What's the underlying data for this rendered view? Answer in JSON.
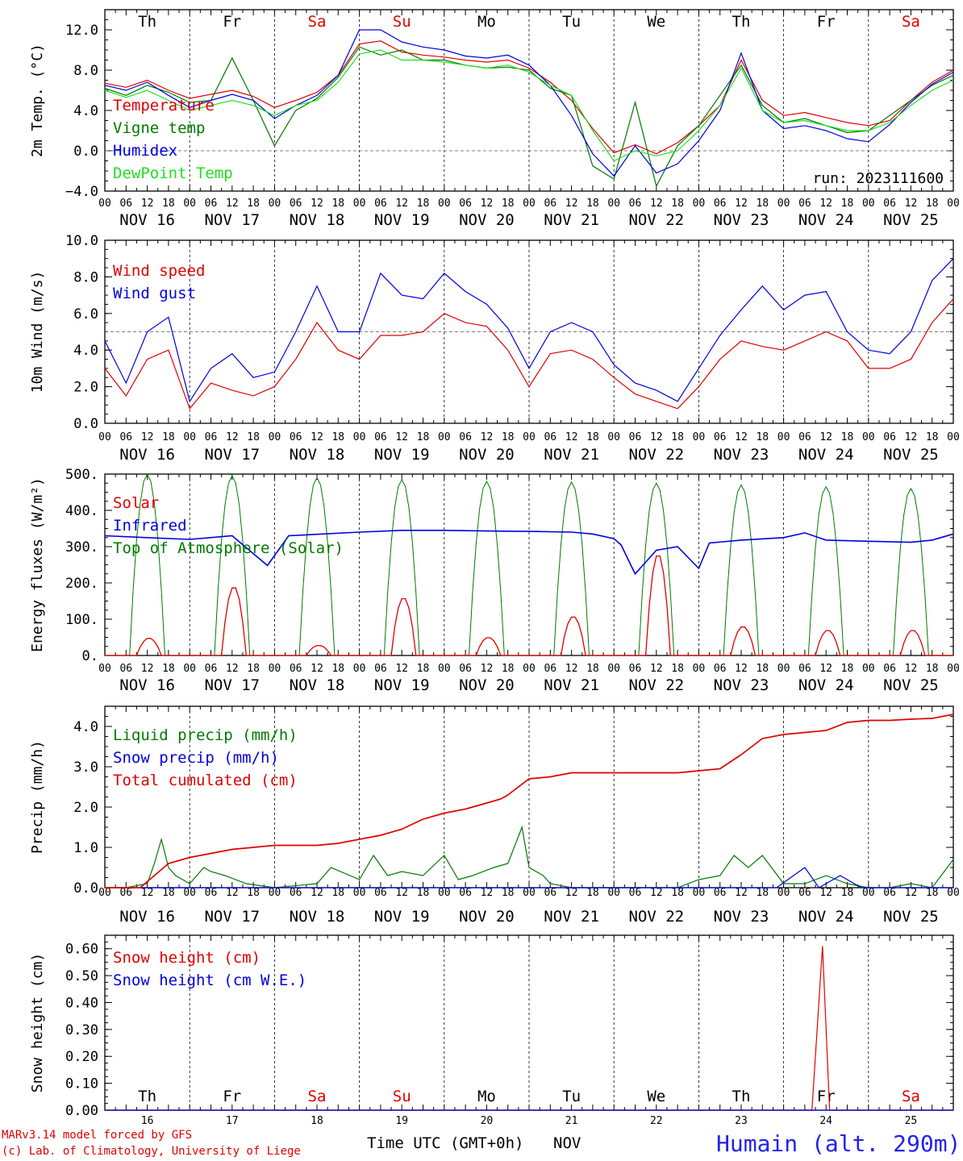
{
  "chart_data": [
    {
      "type": "line",
      "ylabel": "2m Temp. (°C)",
      "ylim": [
        -4,
        14
      ],
      "yticks": [
        "−4.0",
        "0.0",
        "4.0",
        "8.0",
        "12.0"
      ],
      "x_unit": "hours since NOV 16 00 UTC",
      "xlim": [
        0,
        240
      ],
      "reference_line": 0,
      "annotation": "run: 2023111600",
      "legend": [
        "Temperature",
        "Vigne temp",
        "Humidex",
        "DewPoint Temp"
      ],
      "series": [
        {
          "name": "Temperature",
          "color": "#e00000",
          "x": [
            0,
            6,
            12,
            18,
            24,
            30,
            36,
            42,
            48,
            54,
            60,
            66,
            72,
            78,
            84,
            90,
            96,
            102,
            108,
            114,
            120,
            126,
            132,
            138,
            144,
            150,
            156,
            162,
            168,
            174,
            180,
            186,
            192,
            198,
            204,
            210,
            216,
            222,
            228,
            234,
            240
          ],
          "values": [
            6.7,
            6.3,
            7.0,
            6.0,
            5.2,
            5.6,
            6.0,
            5.4,
            4.3,
            5.0,
            5.8,
            7.5,
            10.6,
            10.9,
            9.8,
            9.5,
            9.3,
            9.0,
            8.8,
            9.0,
            8.2,
            6.8,
            5.0,
            2.2,
            -0.2,
            0.6,
            -0.3,
            0.8,
            2.5,
            4.5,
            9.0,
            5.0,
            3.5,
            3.8,
            3.3,
            2.8,
            2.5,
            3.0,
            5.0,
            6.8,
            8.0
          ]
        },
        {
          "name": "Vigne temp",
          "color": "#007a00",
          "x": [
            0,
            6,
            12,
            18,
            24,
            30,
            36,
            42,
            48,
            54,
            60,
            66,
            72,
            78,
            84,
            90,
            96,
            102,
            108,
            114,
            120,
            126,
            132,
            138,
            144,
            150,
            156,
            162,
            168,
            174,
            180,
            186,
            192,
            198,
            204,
            210,
            216,
            222,
            228,
            234,
            240
          ],
          "values": [
            6.2,
            5.5,
            6.5,
            5.8,
            4.8,
            5.0,
            9.2,
            5.0,
            0.5,
            4.0,
            5.2,
            7.3,
            10.3,
            9.5,
            10.0,
            9.0,
            9.0,
            8.5,
            8.2,
            8.3,
            8.0,
            6.2,
            5.5,
            -1.5,
            -2.8,
            4.8,
            -3.5,
            0.5,
            2.5,
            5.5,
            8.5,
            4.5,
            2.8,
            3.2,
            2.5,
            1.8,
            2.0,
            3.5,
            5.0,
            6.5,
            7.5
          ]
        },
        {
          "name": "Humidex",
          "color": "#0000e0",
          "x": [
            0,
            6,
            12,
            18,
            24,
            30,
            36,
            42,
            48,
            54,
            60,
            66,
            72,
            78,
            84,
            90,
            96,
            102,
            108,
            114,
            120,
            126,
            132,
            138,
            144,
            150,
            156,
            162,
            168,
            174,
            180,
            186,
            192,
            198,
            204,
            210,
            216,
            222,
            228,
            234,
            240
          ],
          "values": [
            6.5,
            6.0,
            6.8,
            5.5,
            4.3,
            5.0,
            5.6,
            5.0,
            3.2,
            4.5,
            5.5,
            7.5,
            12.0,
            12.0,
            10.8,
            10.3,
            10.0,
            9.4,
            9.2,
            9.5,
            8.5,
            6.5,
            3.5,
            -0.3,
            -2.5,
            0.5,
            -2.2,
            -1.3,
            1.0,
            4.0,
            9.7,
            4.0,
            2.2,
            2.5,
            2.0,
            1.2,
            0.9,
            2.6,
            4.8,
            6.6,
            7.8
          ]
        },
        {
          "name": "DewPoint Temp",
          "color": "#22dd22",
          "x": [
            0,
            6,
            12,
            18,
            24,
            30,
            36,
            42,
            48,
            54,
            60,
            66,
            72,
            78,
            84,
            90,
            96,
            102,
            108,
            114,
            120,
            126,
            132,
            138,
            144,
            150,
            156,
            162,
            168,
            174,
            180,
            186,
            192,
            198,
            204,
            210,
            216,
            222,
            228,
            234,
            240
          ],
          "values": [
            6.0,
            5.3,
            6.0,
            5.0,
            4.0,
            4.5,
            5.0,
            4.5,
            3.5,
            4.5,
            5.0,
            6.8,
            9.6,
            10.0,
            9.0,
            9.0,
            8.8,
            8.5,
            8.2,
            8.5,
            7.8,
            6.5,
            5.5,
            2.0,
            -1.0,
            0.0,
            -0.5,
            0.0,
            2.0,
            4.5,
            8.2,
            4.0,
            2.8,
            3.0,
            2.5,
            2.0,
            2.0,
            2.8,
            4.5,
            6.0,
            7.0
          ]
        }
      ]
    },
    {
      "type": "line",
      "ylabel": "10m Wind (m/s)",
      "ylim": [
        0,
        10
      ],
      "yticks": [
        "0.0",
        "2.0",
        "4.0",
        "6.0",
        "8.0",
        "10.0"
      ],
      "x_unit": "hours since NOV 16 00 UTC",
      "xlim": [
        0,
        240
      ],
      "reference_line": 5,
      "legend": [
        "Wind speed",
        "Wind gust"
      ],
      "series": [
        {
          "name": "Wind speed",
          "color": "#e00000",
          "x": [
            0,
            6,
            12,
            18,
            24,
            30,
            36,
            42,
            48,
            54,
            60,
            66,
            72,
            78,
            84,
            90,
            96,
            102,
            108,
            114,
            120,
            126,
            132,
            138,
            144,
            150,
            156,
            162,
            168,
            174,
            180,
            186,
            192,
            198,
            204,
            210,
            216,
            222,
            228,
            234,
            240
          ],
          "values": [
            3.0,
            1.5,
            3.5,
            4.0,
            0.8,
            2.2,
            1.8,
            1.5,
            2.0,
            3.5,
            5.5,
            4.0,
            3.5,
            4.8,
            4.8,
            5.0,
            6.0,
            5.5,
            5.3,
            4.0,
            2.0,
            3.8,
            4.0,
            3.5,
            2.5,
            1.6,
            1.2,
            0.8,
            2.0,
            3.5,
            4.5,
            4.2,
            4.0,
            4.5,
            5.0,
            4.5,
            3.0,
            3.0,
            3.5,
            5.5,
            6.8
          ]
        },
        {
          "name": "Wind gust",
          "color": "#0000e0",
          "x": [
            0,
            6,
            12,
            18,
            24,
            30,
            36,
            42,
            48,
            54,
            60,
            66,
            72,
            78,
            84,
            90,
            96,
            102,
            108,
            114,
            120,
            126,
            132,
            138,
            144,
            150,
            156,
            162,
            168,
            174,
            180,
            186,
            192,
            198,
            204,
            210,
            216,
            222,
            228,
            234,
            240
          ],
          "values": [
            4.5,
            2.2,
            5.0,
            5.8,
            1.2,
            3.0,
            3.8,
            2.5,
            2.8,
            5.0,
            7.5,
            5.0,
            5.0,
            8.2,
            7.0,
            6.8,
            8.2,
            7.2,
            6.5,
            5.2,
            3.0,
            5.0,
            5.5,
            5.0,
            3.2,
            2.2,
            1.8,
            1.2,
            3.0,
            4.8,
            6.2,
            7.5,
            6.2,
            7.0,
            7.2,
            5.0,
            4.0,
            3.8,
            5.0,
            7.8,
            9.0
          ]
        }
      ]
    },
    {
      "type": "line",
      "ylabel": "Energy fluxes (W/m²)",
      "ylim": [
        0,
        500
      ],
      "yticks": [
        "0.",
        "100.",
        "200.",
        "300.",
        "400.",
        "500."
      ],
      "x_unit": "hours since NOV 16 00 UTC",
      "xlim": [
        0,
        240
      ],
      "legend": [
        "Solar",
        "Infrared",
        "Top of Atmosphere (Solar)"
      ],
      "solar_peak_wm2": [
        48,
        190,
        28,
        160,
        50,
        108,
        280,
        80,
        70,
        70
      ],
      "infrared_wm2": [
        330,
        325,
        320,
        330,
        248,
        330,
        340,
        345,
        345,
        343,
        342,
        340,
        335,
        322,
        305,
        225,
        290,
        300,
        240,
        310,
        318,
        325,
        338,
        318,
        315,
        312,
        318,
        335
      ],
      "infrared_x": [
        0,
        12,
        24,
        36,
        46,
        52,
        72,
        84,
        96,
        108,
        120,
        132,
        138,
        144,
        146,
        150,
        156,
        162,
        168,
        171,
        180,
        192,
        198,
        204,
        216,
        228,
        234,
        240
      ],
      "toa_solar_peak_wm2": [
        500,
        495,
        490,
        485,
        480,
        478,
        475,
        470,
        465,
        460
      ],
      "series": [
        {
          "name": "Solar",
          "color": "#e00000"
        },
        {
          "name": "Infrared",
          "color": "#0000e0"
        },
        {
          "name": "Top of Atmosphere (Solar)",
          "color": "#007a00"
        }
      ]
    },
    {
      "type": "line",
      "ylabel": "Precip (mm/h)",
      "ylim": [
        0,
        4.5
      ],
      "yticks": [
        "0.0",
        "1.0",
        "2.0",
        "3.0",
        "4.0"
      ],
      "x_unit": "hours since NOV 16 00 UTC",
      "xlim": [
        0,
        240
      ],
      "legend": [
        "Liquid precip (mm/h)",
        "Snow precip (mm/h)",
        "Total cumulated (cm)"
      ],
      "series": [
        {
          "name": "Liquid precip (mm/h)",
          "color": "#007a00",
          "x": [
            0,
            6,
            12,
            14,
            16,
            18,
            20,
            24,
            28,
            30,
            34,
            40,
            48,
            60,
            64,
            72,
            76,
            80,
            84,
            90,
            96,
            100,
            104,
            110,
            114,
            118,
            120,
            124,
            126,
            132,
            138,
            144,
            150,
            156,
            162,
            168,
            174,
            178,
            182,
            186,
            192,
            198,
            204,
            210,
            216,
            222,
            228,
            234,
            240
          ],
          "values": [
            0.0,
            0.0,
            0.1,
            0.6,
            1.2,
            0.5,
            0.3,
            0.1,
            0.5,
            0.4,
            0.3,
            0.1,
            0.0,
            0.1,
            0.5,
            0.2,
            0.8,
            0.3,
            0.4,
            0.3,
            0.8,
            0.2,
            0.3,
            0.5,
            0.6,
            1.5,
            0.5,
            0.3,
            0.1,
            0.0,
            0.0,
            0.0,
            0.0,
            0.0,
            0.0,
            0.2,
            0.3,
            0.8,
            0.5,
            0.8,
            0.1,
            0.1,
            0.3,
            0.1,
            0.0,
            0.0,
            0.1,
            0.0,
            0.7
          ]
        },
        {
          "name": "Snow precip (mm/h)",
          "color": "#0000e0",
          "x": [
            0,
            12,
            24,
            36,
            48,
            60,
            72,
            84,
            96,
            108,
            120,
            132,
            144,
            156,
            168,
            180,
            190,
            198,
            202,
            208,
            214,
            220,
            228,
            240
          ],
          "values": [
            0,
            0,
            0,
            0,
            0,
            0,
            0,
            0,
            0,
            0,
            0,
            0,
            0,
            0,
            0,
            0,
            0,
            0.5,
            0,
            0.3,
            0,
            0,
            0,
            0
          ]
        },
        {
          "name": "Total cumulated (cm)",
          "color": "#e00000",
          "x": [
            0,
            10,
            14,
            18,
            22,
            24,
            30,
            36,
            42,
            48,
            54,
            60,
            66,
            72,
            78,
            84,
            90,
            96,
            102,
            108,
            112,
            114,
            120,
            126,
            132,
            138,
            144,
            150,
            156,
            162,
            168,
            174,
            180,
            186,
            192,
            198,
            204,
            210,
            216,
            222,
            228,
            234,
            240
          ],
          "values": [
            0.0,
            0.0,
            0.3,
            0.6,
            0.7,
            0.75,
            0.85,
            0.95,
            1.0,
            1.05,
            1.05,
            1.05,
            1.1,
            1.2,
            1.3,
            1.45,
            1.7,
            1.85,
            1.95,
            2.1,
            2.2,
            2.3,
            2.7,
            2.75,
            2.85,
            2.85,
            2.85,
            2.85,
            2.85,
            2.85,
            2.9,
            2.95,
            3.3,
            3.7,
            3.8,
            3.85,
            3.9,
            4.1,
            4.15,
            4.15,
            4.18,
            4.2,
            4.3
          ]
        }
      ]
    },
    {
      "type": "line",
      "ylabel": "Snow height (cm)",
      "ylim": [
        0,
        0.65
      ],
      "yticks": [
        "0.00",
        "0.10",
        "0.20",
        "0.30",
        "0.40",
        "0.50",
        "0.60"
      ],
      "x_unit": "hours since NOV 16 00 UTC",
      "xlim": [
        0,
        240
      ],
      "legend": [
        "Snow height (cm)",
        "Snow height (cm W.E.)"
      ],
      "series": [
        {
          "name": "Snow height (cm)",
          "color": "#e00000",
          "x": [
            0,
            200,
            203,
            205,
            240
          ],
          "values": [
            0,
            0,
            0.61,
            0,
            0
          ]
        },
        {
          "name": "Snow height (cm W.E.)",
          "color": "#0000e0",
          "x": [
            0,
            240
          ],
          "values": [
            0,
            0
          ]
        }
      ]
    }
  ],
  "days": [
    {
      "abbr": "Th",
      "date": "NOV 16",
      "num": "16",
      "weekend": false
    },
    {
      "abbr": "Fr",
      "date": "NOV 17",
      "num": "17",
      "weekend": false
    },
    {
      "abbr": "Sa",
      "date": "NOV 18",
      "num": "18",
      "weekend": true
    },
    {
      "abbr": "Su",
      "date": "NOV 19",
      "num": "19",
      "weekend": true
    },
    {
      "abbr": "Mo",
      "date": "NOV 20",
      "num": "20",
      "weekend": false
    },
    {
      "abbr": "Tu",
      "date": "NOV 21",
      "num": "21",
      "weekend": false
    },
    {
      "abbr": "We",
      "date": "NOV 22",
      "num": "22",
      "weekend": false
    },
    {
      "abbr": "Th",
      "date": "NOV 23",
      "num": "23",
      "weekend": false
    },
    {
      "abbr": "Fr",
      "date": "NOV 24",
      "num": "24",
      "weekend": false
    },
    {
      "abbr": "Sa",
      "date": "NOV 25",
      "num": "25",
      "weekend": true
    }
  ],
  "hour_ticks": [
    "00",
    "06",
    "12",
    "18"
  ],
  "last_tick": "00",
  "footer": {
    "credit_line1": "MARv3.14 model forced by GFS",
    "credit_line2": "(c) Lab. of Climatology, University of Liege",
    "xaxis_title": "Time UTC (GMT+0h)",
    "xaxis_unit": "NOV",
    "station": "Humain (alt. 290m)"
  },
  "colors": {
    "red": "#e00000",
    "green": "#007a00",
    "blue": "#0000e0",
    "lightgreen": "#22dd22",
    "weekend": "#e00000",
    "station": "#2222ee"
  }
}
